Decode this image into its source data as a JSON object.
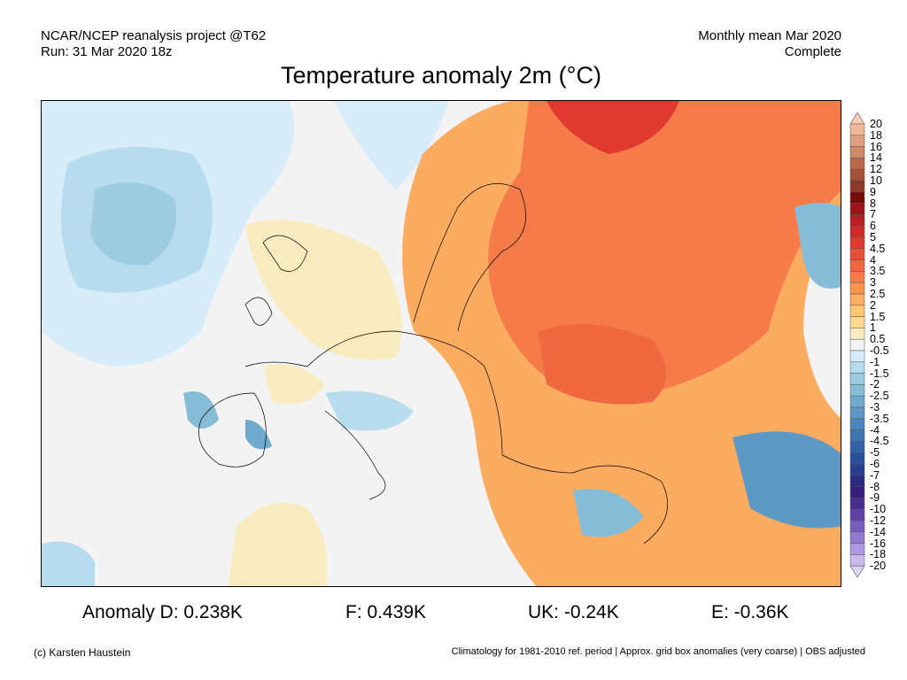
{
  "header": {
    "source": "NCAR/NCEP reanalysis project @T62",
    "run": "Run: 31 Mar 2020 18z",
    "period": "Monthly mean Mar 2020",
    "status": "Complete",
    "title": "Temperature anomaly 2m (°C)"
  },
  "stats": {
    "d": "Anomaly D: 0.238K",
    "f": "F: 0.439K",
    "uk": "UK: -0.24K",
    "e": "E: -0.36K"
  },
  "footer": {
    "copyright": "(c) Karsten Haustein",
    "note": "Climatology for 1981-2010 ref. period | Approx. grid box anomalies (very coarse) | OBS adjusted"
  },
  "colorbar": {
    "labels": [
      "20",
      "18",
      "16",
      "14",
      "12",
      "10",
      "9",
      "8",
      "7",
      "6",
      "5",
      "4.5",
      "4",
      "3.5",
      "3",
      "2.5",
      "2",
      "1.5",
      "1",
      "0.5",
      "-0.5",
      "-1",
      "-1.5",
      "-2",
      "-2.5",
      "-3",
      "-3.5",
      "-4",
      "-4.5",
      "-5",
      "-6",
      "-7",
      "-8",
      "-9",
      "-10",
      "-12",
      "-14",
      "-16",
      "-18",
      "-20"
    ],
    "top_triangle": "#f6cdb5",
    "bottom_triangle": "#dcd4f4",
    "colors": [
      "#edb898",
      "#dfa080",
      "#cf8a68",
      "#b86a4c",
      "#a5523a",
      "#8e3a28",
      "#7a0a0a",
      "#9c1418",
      "#b81e22",
      "#cf2a28",
      "#e03a30",
      "#e8503a",
      "#f06840",
      "#f57c48",
      "#f89450",
      "#fbac60",
      "#fdc474",
      "#fdd890",
      "#f8ebbf",
      "#f2f2f2",
      "#d6ecf8",
      "#b6dcee",
      "#9dcce0",
      "#86bcd6",
      "#70aacc",
      "#5e98c4",
      "#4c86bc",
      "#3e74b2",
      "#3562a8",
      "#2c509c",
      "#283e8e",
      "#2a2c80",
      "#38207a",
      "#4a2c8e",
      "#6040a4",
      "#7a5cbc",
      "#9478d0",
      "#ae98e0",
      "#c8b8ec"
    ]
  }
}
